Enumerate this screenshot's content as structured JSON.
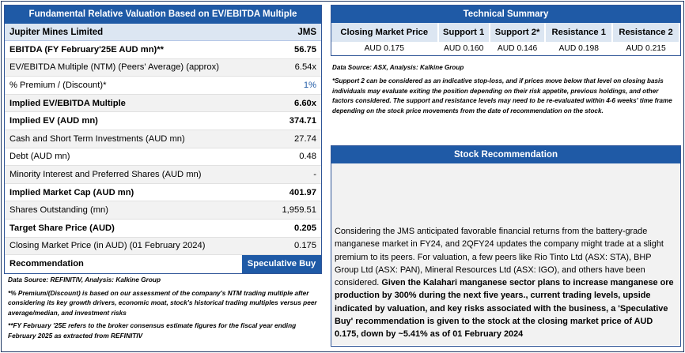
{
  "valuation": {
    "title": "Fundamental Relative Valuation Based on EV/EBITDA Multiple",
    "company": "Jupiter Mines Limited",
    "ticker": "JMS",
    "rows": [
      {
        "label": "EBITDA (FY February'25E AUD mn)**",
        "value": "56.75",
        "bold": true
      },
      {
        "label": "EV/EBITDA Multiple (NTM)  (Peers' Average) (approx)",
        "value": "6.54x",
        "bold": false
      },
      {
        "label": "% Premium / (Discount)*",
        "value": "1%",
        "bold": false
      },
      {
        "label": "Implied EV/EBITDA Multiple",
        "value": "6.60x",
        "bold": true
      },
      {
        "label": "Implied EV (AUD mn)",
        "value": "374.71",
        "bold": true
      },
      {
        "label": "Cash and Short Term Investments (AUD mn)",
        "value": "27.74",
        "bold": false
      },
      {
        "label": "Debt (AUD mn)",
        "value": "0.48",
        "bold": false
      },
      {
        "label": "Minority Interest and Preferred Shares (AUD mn)",
        "value": "-",
        "bold": false
      },
      {
        "label": "Implied Market Cap (AUD mn)",
        "value": "401.97",
        "bold": true
      },
      {
        "label": "Shares Outstanding (mn)",
        "value": "1,959.51",
        "bold": false
      },
      {
        "label": "Target Share Price (AUD)",
        "value": "0.205",
        "bold": true
      },
      {
        "label": "Closing Market Price (in AUD) (01 February 2024)",
        "value": "0.175",
        "bold": false
      }
    ],
    "recommendation_label": "Recommendation",
    "recommendation_value": "Speculative Buy"
  },
  "left_notes": {
    "source": "Data Source: REFINITIV, Analysis: Kalkine Group",
    "note1": "*% Premium/(Discount) is based on our assessment of the company's NTM trading multiple after considering its key growth drivers, economic moat, stock's historical trading multiples versus peer average/median, and investment risks",
    "note2": "**FY February '25E refers to the broker consensus estimate figures for the fiscal year ending February 2025  as extracted from REFINITIV"
  },
  "technical": {
    "title": "Technical Summary",
    "headers": [
      "Closing Market Price",
      "Support 1",
      "Support 2*",
      "Resistance 1",
      "Resistance 2"
    ],
    "values": [
      "AUD 0.175",
      "AUD 0.160",
      "AUD 0.146",
      "AUD 0.198",
      "AUD 0.215"
    ],
    "source": "Data Source: ASX, Analysis: Kalkine Group",
    "note": "*Support 2 can be considered as an indicative stop-loss, and if prices move below that level on closing basis individuals may evaluate exiting the position depending on their risk appetite, previous holdings, and other factors considered. The support and resistance levels may need to be re-evaluated within 4-6 weeks' time frame depending on the stock price movements from the date of recommendation on the stock."
  },
  "stock_rec": {
    "title": "Stock Recommendation",
    "text_plain": "Considering the JMS anticipated favorable financial returns from the battery-grade manganese market in FY24, and 2QFY24 updates the company might trade at a slight premium to its peers. For valuation, a few peers like Rio Tinto Ltd (ASX: STA), BHP Group Ltd (ASX: PAN), Mineral Resources Ltd (ASX: IGO), and others have been considered. ",
    "text_bold": "Given the Kalahari manganese sector plans to increase manganese ore production by 300% during the next five years., current trading levels, upside indicated by valuation, and key risks associated with the business, a 'Speculative Buy' recommendation is given to the stock at the closing market price of AUD 0.175, down by ~5.41% as of 01 February 2024"
  }
}
